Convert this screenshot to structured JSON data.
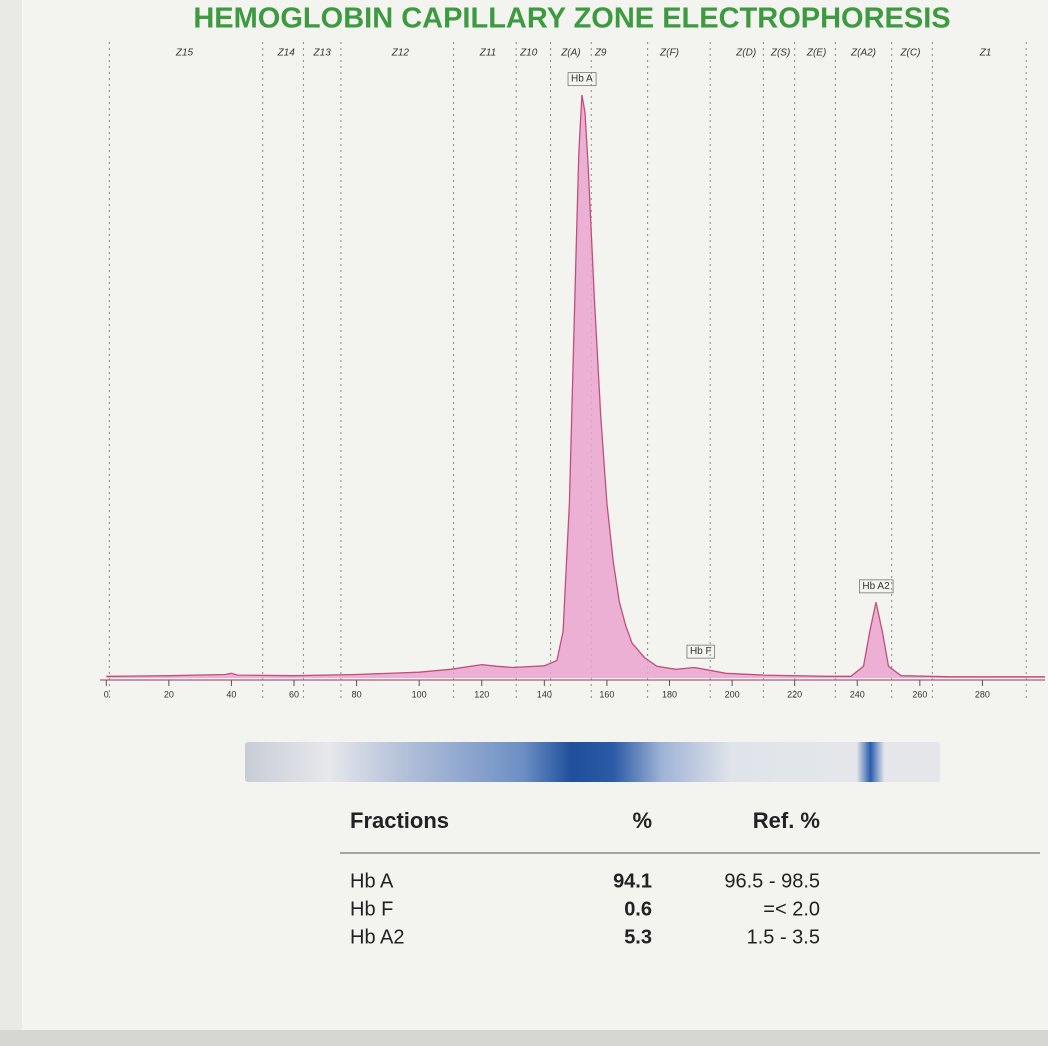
{
  "chart_data": {
    "type": "area",
    "title": "HEMOGLOBIN  CAPILLARY  ZONE ELECTROPHORESIS",
    "x": [
      0,
      20,
      38,
      40,
      42,
      60,
      80,
      100,
      110,
      120,
      125,
      130,
      140,
      144,
      146,
      148,
      150,
      151,
      152,
      153,
      154,
      156,
      158,
      160,
      162,
      164,
      166,
      168,
      172,
      176,
      182,
      188,
      192,
      198,
      210,
      230,
      238,
      242,
      244,
      246,
      248,
      250,
      254,
      270,
      300
    ],
    "values": [
      0.3,
      0.4,
      0.6,
      0.8,
      0.5,
      0.4,
      0.6,
      1,
      1.5,
      2.3,
      2.0,
      1.8,
      2.1,
      3,
      8,
      30,
      70,
      90,
      100,
      97,
      88,
      65,
      45,
      30,
      20,
      13,
      9,
      6,
      3.5,
      2,
      1.5,
      1.8,
      1.4,
      0.8,
      0.5,
      0.3,
      0.3,
      2,
      8,
      13,
      8,
      2,
      0.4,
      0.2,
      0.2
    ],
    "color": "#c0507a",
    "fill": "#e9a3cf",
    "xlim": [
      -2,
      300
    ],
    "ylim": [
      0,
      100
    ],
    "xticks": [
      0,
      20,
      40,
      60,
      80,
      100,
      120,
      140,
      160,
      180,
      200,
      220,
      240,
      260,
      280
    ],
    "zone_boundaries": [
      1,
      50,
      63,
      75,
      111,
      131,
      142,
      155,
      173,
      193,
      210,
      220,
      233,
      251,
      264,
      294
    ],
    "zones": [
      {
        "label": "Z15",
        "x": 25
      },
      {
        "label": "Z14",
        "x": 57.5
      },
      {
        "label": "Z13",
        "x": 69
      },
      {
        "label": "Z12",
        "x": 94
      },
      {
        "label": "Z11",
        "x": 122
      },
      {
        "label": "Z10",
        "x": 135
      },
      {
        "label": "Z(A)",
        "x": 148.5
      },
      {
        "label": "Z9",
        "x": 158
      },
      {
        "label": "Z(F)",
        "x": 180
      },
      {
        "label": "Z(D)",
        "x": 204.5
      },
      {
        "label": "Z(S)",
        "x": 215.5
      },
      {
        "label": "Z(E)",
        "x": 227
      },
      {
        "label": "Z(A2)",
        "x": 242
      },
      {
        "label": "Z(C)",
        "x": 257
      },
      {
        "label": "Z1",
        "x": 281
      }
    ],
    "annotations": [
      {
        "text": "Hb A",
        "x": 152
      },
      {
        "text": "Hb F",
        "x": 190
      },
      {
        "text": "Hb A2",
        "x": 246
      }
    ]
  },
  "table": {
    "headers": [
      "Fractions",
      "%",
      "Ref. %"
    ],
    "rows": [
      [
        "Hb A",
        94.1,
        "96.5 - 98.5"
      ],
      [
        "Hb F",
        0.6,
        "=< 2.0"
      ],
      [
        "Hb A2",
        5.3,
        "1.5 - 3.5"
      ]
    ]
  }
}
